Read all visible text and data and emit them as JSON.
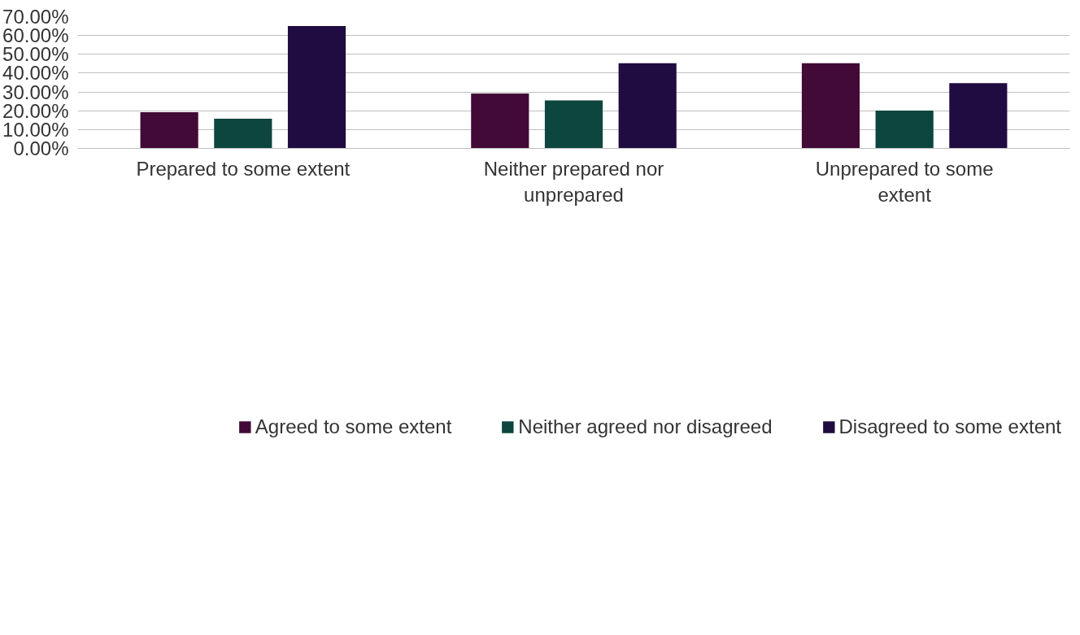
{
  "chart_data": {
    "type": "bar",
    "categories": [
      "Prepared to some extent",
      "Neither prepared nor unprepared",
      "Unprepared to some extent"
    ],
    "series": [
      {
        "name": "Agreed to some extent",
        "color": "#420a36",
        "values": [
          19.2,
          29.2,
          45.3
        ]
      },
      {
        "name": "Neither agreed nor disagreed",
        "color": "#0d453f",
        "values": [
          15.8,
          25.5,
          20.1
        ]
      },
      {
        "name": "Disagreed to some extent",
        "color": "#200c40",
        "values": [
          65.0,
          45.3,
          34.7
        ]
      }
    ],
    "ylim": [
      0,
      70
    ],
    "yticks": [
      {
        "value": 0,
        "label": "0.00%"
      },
      {
        "value": 10,
        "label": "10.00%"
      },
      {
        "value": 20,
        "label": "20.00%"
      },
      {
        "value": 30,
        "label": "30.00%"
      },
      {
        "value": 40,
        "label": "40.00%"
      },
      {
        "value": 50,
        "label": "50.00%"
      },
      {
        "value": 60,
        "label": "60.00%"
      },
      {
        "value": 70,
        "label": "70.00%"
      }
    ],
    "grid": "y",
    "legend": "bottom"
  }
}
